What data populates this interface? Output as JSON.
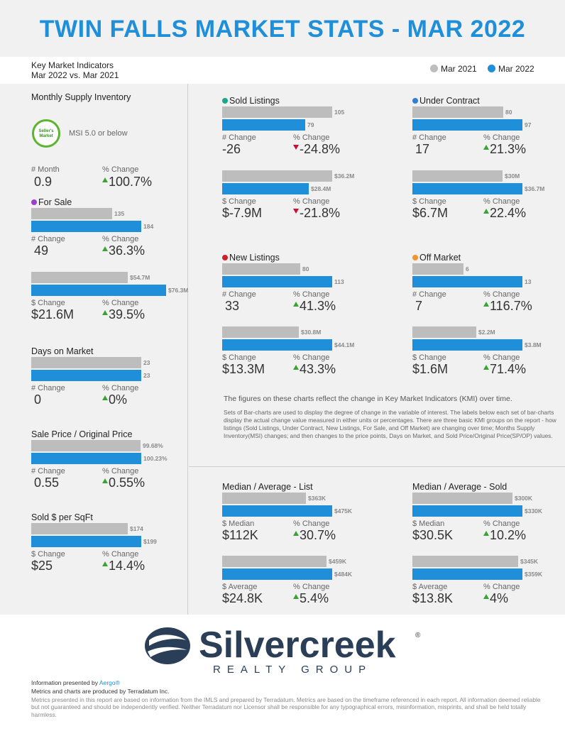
{
  "title": "TWIN FALLS MARKET STATS - MAR 2022",
  "kmi": {
    "line1": "Key Market Indicators",
    "line2": "Mar 2022 vs. Mar 2021"
  },
  "legend": {
    "prev": "Mar 2021",
    "curr": "Mar 2022"
  },
  "colors": {
    "prev": "#bdbdbd",
    "curr": "#1e8fd8",
    "title": "#1e8fd8",
    "up": "#3aa335",
    "down": "#c8102e"
  },
  "msi": {
    "title": "Monthly Supply Inventory",
    "badge": "Seller's Market",
    "desc": "MSI 5.0 or below",
    "change_label": "# Month",
    "change": "0.9",
    "pct_label": "% Change",
    "pct": "100.7%",
    "dir": "up"
  },
  "chart_data": [
    {
      "type": "bar",
      "title": "For Sale",
      "categories": [
        "Mar 2021",
        "Mar 2022"
      ],
      "values": [
        135,
        184
      ],
      "labels": [
        "135",
        "184"
      ],
      "change_label": "# Change",
      "change": "49",
      "pct_label": "% Change",
      "pct": "36.3%",
      "dir": "up",
      "dot_color": "#9b3fcf"
    },
    {
      "type": "bar",
      "title": "",
      "categories": [
        "Mar 2021",
        "Mar 2022"
      ],
      "values": [
        54.7,
        76.3
      ],
      "labels": [
        "$54.7M",
        "$76.3M"
      ],
      "change_label": "$ Change",
      "change": "$21.6M",
      "pct_label": "% Change",
      "pct": "39.5%",
      "dir": "up"
    },
    {
      "type": "bar",
      "title": "Days on Market",
      "categories": [
        "Mar 2021",
        "Mar 2022"
      ],
      "values": [
        23,
        23
      ],
      "labels": [
        "23",
        "23"
      ],
      "change_label": "# Change",
      "change": "0",
      "pct_label": "% Change",
      "pct": "0%",
      "dir": "up"
    },
    {
      "type": "bar",
      "title": "Sale Price / Original Price",
      "categories": [
        "Mar 2021",
        "Mar 2022"
      ],
      "values": [
        99.68,
        100.23
      ],
      "labels": [
        "99.68%",
        "100.23%"
      ],
      "change_label": "# Change",
      "change": "0.55",
      "pct_label": "% Change",
      "pct": "0.55%",
      "dir": "up"
    },
    {
      "type": "bar",
      "title": "Sold $ per SqFt",
      "categories": [
        "Mar 2021",
        "Mar 2022"
      ],
      "values": [
        174,
        199
      ],
      "labels": [
        "$174",
        "$199"
      ],
      "change_label": "$ Change",
      "change": "$25",
      "pct_label": "% Change",
      "pct": "14.4%",
      "dir": "up"
    },
    {
      "type": "bar",
      "title": "Sold Listings",
      "categories": [
        "Mar 2021",
        "Mar 2022"
      ],
      "values": [
        105,
        79
      ],
      "labels": [
        "105",
        "79"
      ],
      "change_label": "# Change",
      "change": "-26",
      "pct_label": "% Change",
      "pct": "-24.8%",
      "dir": "down",
      "dot_color": "#1aa88c"
    },
    {
      "type": "bar",
      "title": "",
      "categories": [
        "Mar 2021",
        "Mar 2022"
      ],
      "values": [
        36.2,
        28.4
      ],
      "labels": [
        "$36.2M",
        "$28.4M"
      ],
      "change_label": "$ Change",
      "change": "$-7.9M",
      "pct_label": "% Change",
      "pct": "-21.8%",
      "dir": "down"
    },
    {
      "type": "bar",
      "title": "Under Contract",
      "categories": [
        "Mar 2021",
        "Mar 2022"
      ],
      "values": [
        80,
        97
      ],
      "labels": [
        "80",
        "97"
      ],
      "change_label": "# Change",
      "change": "17",
      "pct_label": "% Change",
      "pct": "21.3%",
      "dir": "up",
      "dot_color": "#2f7fd8"
    },
    {
      "type": "bar",
      "title": "",
      "categories": [
        "Mar 2021",
        "Mar 2022"
      ],
      "values": [
        30,
        36.7
      ],
      "labels": [
        "$30M",
        "$36.7M"
      ],
      "change_label": "$ Change",
      "change": "$6.7M",
      "pct_label": "% Change",
      "pct": "22.4%",
      "dir": "up"
    },
    {
      "type": "bar",
      "title": "New Listings",
      "categories": [
        "Mar 2021",
        "Mar 2022"
      ],
      "values": [
        80,
        113
      ],
      "labels": [
        "80",
        "113"
      ],
      "change_label": "# Change",
      "change": "33",
      "pct_label": "% Change",
      "pct": "41.3%",
      "dir": "up",
      "dot_color": "#d11f2a"
    },
    {
      "type": "bar",
      "title": "",
      "categories": [
        "Mar 2021",
        "Mar 2022"
      ],
      "values": [
        30.8,
        44.1
      ],
      "labels": [
        "$30.8M",
        "$44.1M"
      ],
      "change_label": "$ Change",
      "change": "$13.3M",
      "pct_label": "% Change",
      "pct": "43.3%",
      "dir": "up"
    },
    {
      "type": "bar",
      "title": "Off Market",
      "categories": [
        "Mar 2021",
        "Mar 2022"
      ],
      "values": [
        6,
        13
      ],
      "labels": [
        "6",
        "13"
      ],
      "change_label": "# Change",
      "change": "7",
      "pct_label": "% Change",
      "pct": "116.7%",
      "dir": "up",
      "dot_color": "#f0962a"
    },
    {
      "type": "bar",
      "title": "",
      "categories": [
        "Mar 2021",
        "Mar 2022"
      ],
      "values": [
        2.2,
        3.8
      ],
      "labels": [
        "$2.2M",
        "$3.8M"
      ],
      "change_label": "$ Change",
      "change": "$1.6M",
      "pct_label": "% Change",
      "pct": "71.4%",
      "dir": "up"
    },
    {
      "type": "bar",
      "title": "Median / Average - List",
      "categories": [
        "Mar 2021",
        "Mar 2022"
      ],
      "values": [
        363,
        475
      ],
      "labels": [
        "$363K",
        "$475K"
      ],
      "change_label": "$ Median",
      "change": "$112K",
      "pct_label": "% Change",
      "pct": "30.7%",
      "dir": "up"
    },
    {
      "type": "bar",
      "title": "",
      "categories": [
        "Mar 2021",
        "Mar 2022"
      ],
      "values": [
        459,
        484
      ],
      "labels": [
        "$459K",
        "$484K"
      ],
      "change_label": "$ Average",
      "change": "$24.8K",
      "pct_label": "% Change",
      "pct": "5.4%",
      "dir": "up"
    },
    {
      "type": "bar",
      "title": "Median / Average - Sold",
      "categories": [
        "Mar 2021",
        "Mar 2022"
      ],
      "values": [
        300,
        330
      ],
      "labels": [
        "$300K",
        "$330K"
      ],
      "change_label": "$ Median",
      "change": "$30.5K",
      "pct_label": "% Change",
      "pct": "10.2%",
      "dir": "up"
    },
    {
      "type": "bar",
      "title": "",
      "categories": [
        "Mar 2021",
        "Mar 2022"
      ],
      "values": [
        345,
        359
      ],
      "labels": [
        "$345K",
        "$359K"
      ],
      "change_label": "$ Average",
      "change": "$13.8K",
      "pct_label": "% Change",
      "pct": "4%",
      "dir": "up"
    }
  ],
  "notes": {
    "main": "The figures on these charts reflect the change in Key Market Indicators (KMI) over time.",
    "sub": "Sets of Bar-charts are used to display the degree of change in the variable of interest. The labels below each set of bar-charts display the actual change value measured in either units or percentages. There are three basic KMI groups on the report - how listings (Sold Listings, Under Contract, New Listings, For Sale, and Off Market) are changing over time; Months Supply Inventory(MSI) changes; and then changes to the price points, Days on Market, and Sold Price/Original Price(SP/OP) values."
  },
  "logo": {
    "name": "Silvercreek",
    "tagline": "REALTY GROUP",
    "reg": "®"
  },
  "footer": {
    "presented_prefix": "Information presented by ",
    "presented_by": "Aergo®",
    "produced": "Metrics and charts are produced by Terradatum Inc.",
    "disclaimer": "Metrics presented in this report are based on information from the IMLS and prepared by Terradatum. Metrics are based on the timeframe referenced in each report. All information deemed reliable but not guaranteed and should be independently verified. Neither Terradatum nor Licensor shall be responsible for any typographical errors, misinformation, misprints, and shall be held totally harmless."
  }
}
